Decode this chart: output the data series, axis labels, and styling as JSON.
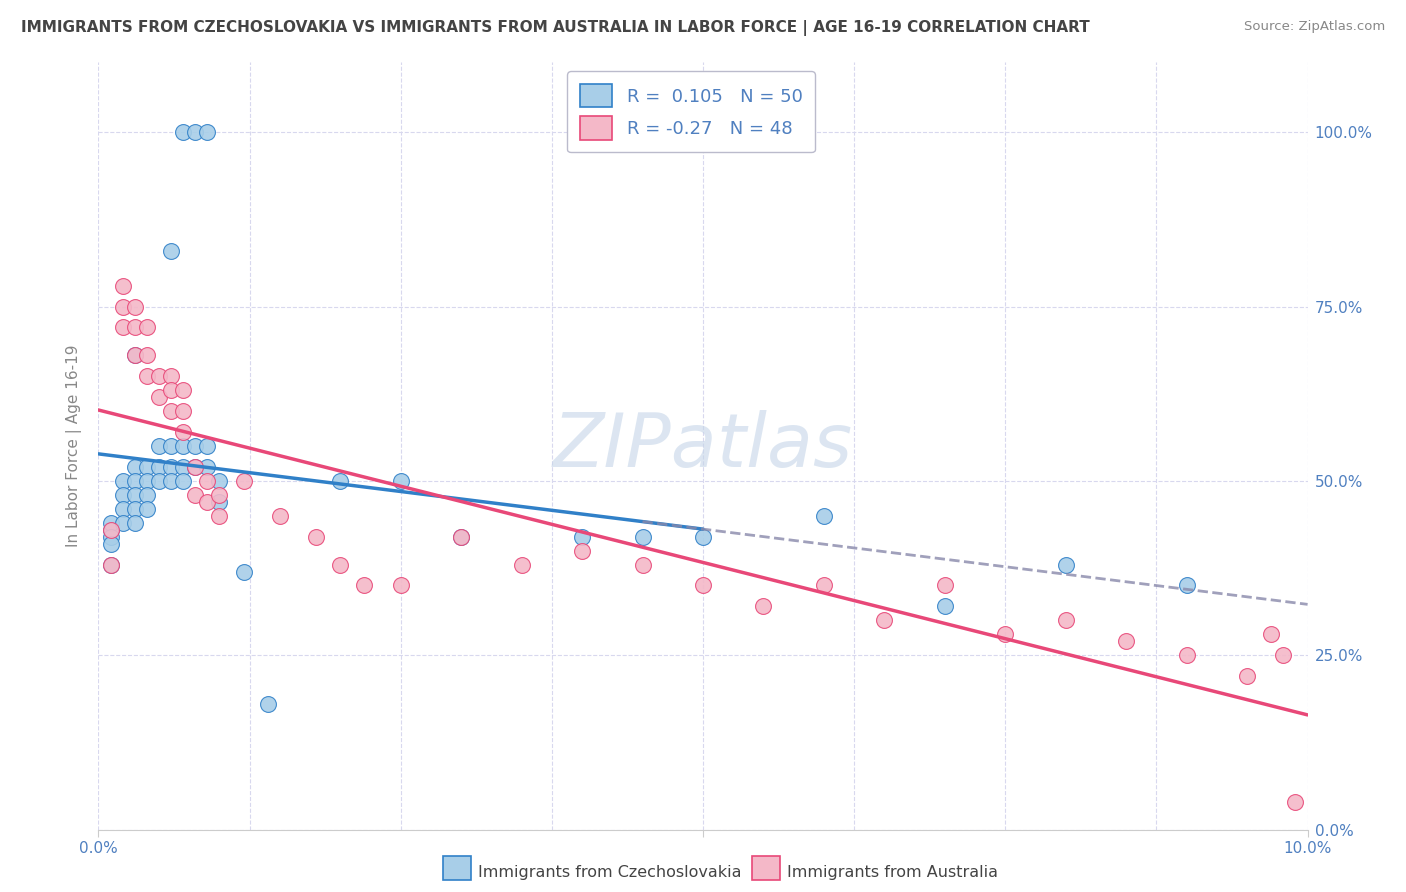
{
  "title": "IMMIGRANTS FROM CZECHOSLOVAKIA VS IMMIGRANTS FROM AUSTRALIA IN LABOR FORCE | AGE 16-19 CORRELATION CHART",
  "source": "Source: ZipAtlas.com",
  "ylabel": "In Labor Force | Age 16-19",
  "blue_label": "Immigrants from Czechoslovakia",
  "pink_label": "Immigrants from Australia",
  "blue_R": 0.105,
  "blue_N": 50,
  "pink_R": -0.27,
  "pink_N": 48,
  "xlim": [
    0.0,
    0.1
  ],
  "ylim": [
    0.0,
    1.1
  ],
  "yticks": [
    0.0,
    0.25,
    0.5,
    0.75,
    1.0
  ],
  "ytick_labels": [
    "0.0%",
    "25.0%",
    "50.0%",
    "75.0%",
    "100.0%"
  ],
  "xtick_labels": [
    "0.0%",
    "10.0%"
  ],
  "blue_color": "#A8CEE8",
  "pink_color": "#F4B8C8",
  "blue_line_color": "#3080C8",
  "pink_line_color": "#E84878",
  "watermark": "ZIPatlas",
  "background_color": "#ffffff",
  "grid_color": "#D8D8EE",
  "blue_scatter_x": [
    0.007,
    0.008,
    0.009,
    0.006,
    0.003,
    0.001,
    0.001,
    0.001,
    0.001,
    0.001,
    0.002,
    0.002,
    0.002,
    0.002,
    0.003,
    0.003,
    0.003,
    0.003,
    0.003,
    0.004,
    0.004,
    0.004,
    0.004,
    0.005,
    0.005,
    0.005,
    0.006,
    0.006,
    0.006,
    0.007,
    0.007,
    0.007,
    0.008,
    0.008,
    0.009,
    0.009,
    0.01,
    0.01,
    0.012,
    0.014,
    0.02,
    0.025,
    0.03,
    0.04,
    0.045,
    0.05,
    0.06,
    0.07,
    0.08,
    0.09
  ],
  "blue_scatter_y": [
    1.0,
    1.0,
    1.0,
    0.83,
    0.68,
    0.43,
    0.44,
    0.42,
    0.41,
    0.38,
    0.5,
    0.48,
    0.46,
    0.44,
    0.52,
    0.5,
    0.48,
    0.46,
    0.44,
    0.52,
    0.5,
    0.48,
    0.46,
    0.55,
    0.52,
    0.5,
    0.55,
    0.52,
    0.5,
    0.55,
    0.52,
    0.5,
    0.55,
    0.52,
    0.55,
    0.52,
    0.5,
    0.47,
    0.37,
    0.18,
    0.5,
    0.5,
    0.42,
    0.42,
    0.42,
    0.42,
    0.45,
    0.32,
    0.38,
    0.35
  ],
  "pink_scatter_x": [
    0.001,
    0.001,
    0.002,
    0.002,
    0.002,
    0.003,
    0.003,
    0.003,
    0.004,
    0.004,
    0.004,
    0.005,
    0.005,
    0.006,
    0.006,
    0.006,
    0.007,
    0.007,
    0.007,
    0.008,
    0.008,
    0.009,
    0.009,
    0.01,
    0.01,
    0.012,
    0.015,
    0.018,
    0.02,
    0.022,
    0.025,
    0.03,
    0.035,
    0.04,
    0.045,
    0.05,
    0.055,
    0.06,
    0.065,
    0.07,
    0.075,
    0.08,
    0.085,
    0.09,
    0.095,
    0.097,
    0.098,
    0.099
  ],
  "pink_scatter_y": [
    0.43,
    0.38,
    0.78,
    0.75,
    0.72,
    0.75,
    0.72,
    0.68,
    0.72,
    0.68,
    0.65,
    0.65,
    0.62,
    0.65,
    0.63,
    0.6,
    0.63,
    0.6,
    0.57,
    0.52,
    0.48,
    0.5,
    0.47,
    0.48,
    0.45,
    0.5,
    0.45,
    0.42,
    0.38,
    0.35,
    0.35,
    0.42,
    0.38,
    0.4,
    0.38,
    0.35,
    0.32,
    0.35,
    0.3,
    0.35,
    0.28,
    0.3,
    0.27,
    0.25,
    0.22,
    0.28,
    0.25,
    0.04
  ]
}
